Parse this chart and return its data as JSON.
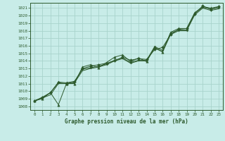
{
  "title": "Graphe pression niveau de la mer (hPa)",
  "bg_color": "#c8ece8",
  "grid_color": "#a8d4cc",
  "line_color": "#2d5a2d",
  "text_color": "#2d5a2d",
  "xlim": [
    -0.5,
    23.5
  ],
  "ylim": [
    1007.5,
    1021.7
  ],
  "xticks": [
    0,
    1,
    2,
    3,
    4,
    5,
    6,
    7,
    8,
    9,
    10,
    11,
    12,
    13,
    14,
    15,
    16,
    17,
    18,
    19,
    20,
    21,
    22,
    23
  ],
  "yticks": [
    1008,
    1009,
    1010,
    1011,
    1012,
    1013,
    1014,
    1015,
    1016,
    1017,
    1018,
    1019,
    1020,
    1021
  ],
  "series": [
    {
      "x": [
        0,
        1,
        2,
        3,
        4,
        5,
        6,
        7,
        8,
        9,
        10,
        11,
        12,
        13,
        14,
        15,
        16,
        17,
        18,
        19,
        20,
        21,
        22,
        23
      ],
      "y": [
        1008.7,
        1009.0,
        1009.8,
        1008.2,
        1011.0,
        1011.0,
        1013.2,
        1013.5,
        1013.1,
        1013.8,
        1014.5,
        1014.8,
        1013.9,
        1014.4,
        1013.9,
        1015.8,
        1015.2,
        1017.8,
        1018.3,
        1018.3,
        1020.4,
        1021.2,
        1021.0,
        1021.2
      ],
      "marker": "^",
      "markersize": 2.5,
      "lw": 0.7
    },
    {
      "x": [
        0,
        1,
        2,
        3,
        4,
        5,
        6,
        7,
        8,
        9,
        10,
        11,
        12,
        13,
        14,
        15,
        16,
        17,
        18,
        19,
        20,
        21,
        22,
        23
      ],
      "y": [
        1008.7,
        1009.2,
        1009.8,
        1011.1,
        1011.0,
        1011.2,
        1013.0,
        1013.3,
        1013.5,
        1013.7,
        1014.0,
        1014.5,
        1014.1,
        1014.3,
        1014.2,
        1015.5,
        1015.8,
        1017.5,
        1018.2,
        1018.3,
        1020.2,
        1021.3,
        1020.8,
        1021.2
      ],
      "marker": "D",
      "markersize": 2.0,
      "lw": 0.7
    },
    {
      "x": [
        0,
        1,
        2,
        3,
        4,
        5,
        6,
        7,
        8,
        9,
        10,
        11,
        12,
        13,
        14,
        15,
        16,
        17,
        18,
        19,
        20,
        21,
        22,
        23
      ],
      "y": [
        1008.7,
        1009.1,
        1009.8,
        1011.2,
        1011.1,
        1011.3,
        1012.9,
        1013.1,
        1013.3,
        1013.6,
        1014.1,
        1014.4,
        1013.8,
        1014.1,
        1014.1,
        1015.9,
        1015.4,
        1017.7,
        1018.1,
        1018.1,
        1020.3,
        1021.1,
        1020.9,
        1021.0
      ],
      "marker": "P",
      "markersize": 2.0,
      "lw": 0.7
    },
    {
      "x": [
        0,
        1,
        2,
        3,
        4,
        5,
        6,
        7,
        8,
        9,
        10,
        11,
        12,
        13,
        14,
        15,
        16,
        17,
        18,
        19,
        20,
        21,
        22,
        23
      ],
      "y": [
        1008.7,
        1009.1,
        1009.5,
        1011.0,
        1011.0,
        1011.1,
        1012.7,
        1013.0,
        1013.2,
        1013.5,
        1014.0,
        1014.3,
        1013.7,
        1014.0,
        1014.0,
        1015.7,
        1015.2,
        1017.5,
        1018.0,
        1018.0,
        1020.1,
        1021.0,
        1020.7,
        1020.9
      ],
      "marker": null,
      "markersize": 0,
      "lw": 0.7
    }
  ]
}
